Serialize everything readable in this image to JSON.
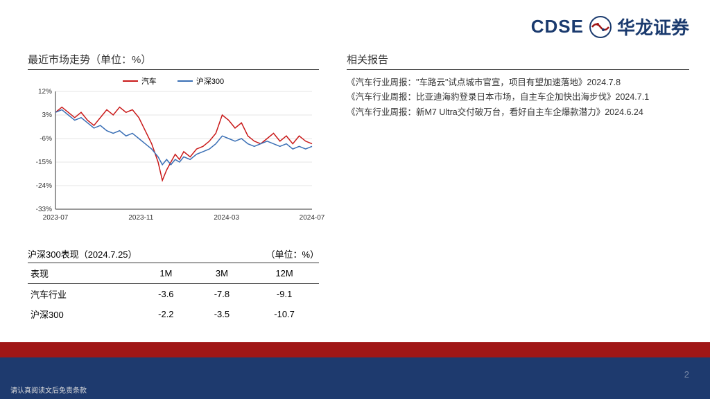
{
  "logo": {
    "cdse": "CDSE",
    "cn": "华龙证券"
  },
  "chart_section": {
    "title": "最近市场走势（单位：%）",
    "legend": [
      {
        "label": "汽车",
        "color": "#c91919"
      },
      {
        "label": "沪深300",
        "color": "#3a6fb5"
      }
    ],
    "chart": {
      "type": "line",
      "background_color": "#ffffff",
      "xlim": [
        0,
        12
      ],
      "ylim": [
        -33,
        12
      ],
      "yticks": [
        -33,
        -24,
        -15,
        -6,
        3,
        12
      ],
      "ytick_labels": [
        "-33%",
        "-24%",
        "-15%",
        "-6%",
        "3%",
        "12%"
      ],
      "xticks": [
        0,
        4,
        8,
        12
      ],
      "xtick_labels": [
        "2023-07",
        "2023-11",
        "2024-03",
        "2024-07"
      ],
      "grid_color": "#cccccc",
      "axis_color": "#333333",
      "tick_fontsize": 10,
      "series": [
        {
          "name": "汽车",
          "color": "#c91919",
          "width": 1.5,
          "x": [
            0,
            0.3,
            0.6,
            0.9,
            1.2,
            1.5,
            1.8,
            2.1,
            2.4,
            2.7,
            3.0,
            3.3,
            3.6,
            3.9,
            4.2,
            4.5,
            4.8,
            5.0,
            5.2,
            5.4,
            5.6,
            5.8,
            6.0,
            6.3,
            6.6,
            6.9,
            7.2,
            7.5,
            7.8,
            8.1,
            8.4,
            8.7,
            9.0,
            9.3,
            9.6,
            9.9,
            10.2,
            10.5,
            10.8,
            11.1,
            11.4,
            11.7,
            12.0
          ],
          "y": [
            4,
            6,
            4,
            2,
            4,
            1,
            -1,
            2,
            5,
            3,
            6,
            4,
            5,
            2,
            -3,
            -8,
            -15,
            -22,
            -18,
            -15,
            -12,
            -14,
            -11,
            -13,
            -10,
            -9,
            -7,
            -4,
            3,
            1,
            -2,
            0,
            -5,
            -7,
            -8,
            -6,
            -4,
            -7,
            -5,
            -8,
            -5,
            -7,
            -8
          ]
        },
        {
          "name": "沪深300",
          "color": "#3a6fb5",
          "width": 1.5,
          "x": [
            0,
            0.3,
            0.6,
            0.9,
            1.2,
            1.5,
            1.8,
            2.1,
            2.4,
            2.7,
            3.0,
            3.3,
            3.6,
            3.9,
            4.2,
            4.5,
            4.8,
            5.0,
            5.2,
            5.4,
            5.6,
            5.8,
            6.0,
            6.3,
            6.6,
            6.9,
            7.2,
            7.5,
            7.8,
            8.1,
            8.4,
            8.7,
            9.0,
            9.3,
            9.6,
            9.9,
            10.2,
            10.5,
            10.8,
            11.1,
            11.4,
            11.7,
            12.0
          ],
          "y": [
            4,
            5,
            3,
            1,
            2,
            0,
            -2,
            -1,
            -3,
            -4,
            -3,
            -5,
            -4,
            -6,
            -8,
            -10,
            -13,
            -16,
            -14,
            -16,
            -14,
            -15,
            -13,
            -14,
            -12,
            -11,
            -10,
            -8,
            -5,
            -6,
            -7,
            -6,
            -8,
            -9,
            -8,
            -7,
            -8,
            -9,
            -8,
            -10,
            -9,
            -10,
            -9
          ]
        }
      ]
    }
  },
  "table_section": {
    "title_left": "沪深300表现（2024.7.25）",
    "title_right": "（单位：%）",
    "columns": [
      "表现",
      "1M",
      "3M",
      "12M"
    ],
    "rows": [
      [
        "汽车行业",
        "-3.6",
        "-7.8",
        "-9.1"
      ],
      [
        "沪深300",
        "-2.2",
        "-3.5",
        "-10.7"
      ]
    ]
  },
  "reports_section": {
    "title": "相关报告",
    "items": [
      "《汽车行业周报：\"车路云\"试点城市官宣，项目有望加速落地》2024.7.8",
      "《汽车行业周报：比亚迪海豹登录日本市场，自主车企加快出海步伐》2024.7.1",
      "《汽车行业周报：新M7 Ultra交付破万台，看好自主车企爆款潜力》2024.6.24"
    ]
  },
  "footer": {
    "page": "2",
    "disclaimer": "请认真阅读文后免责条款"
  },
  "colors": {
    "red_bar": "#a01717",
    "navy_bar": "#1e3a6e",
    "brand": "#1a3a6e"
  }
}
